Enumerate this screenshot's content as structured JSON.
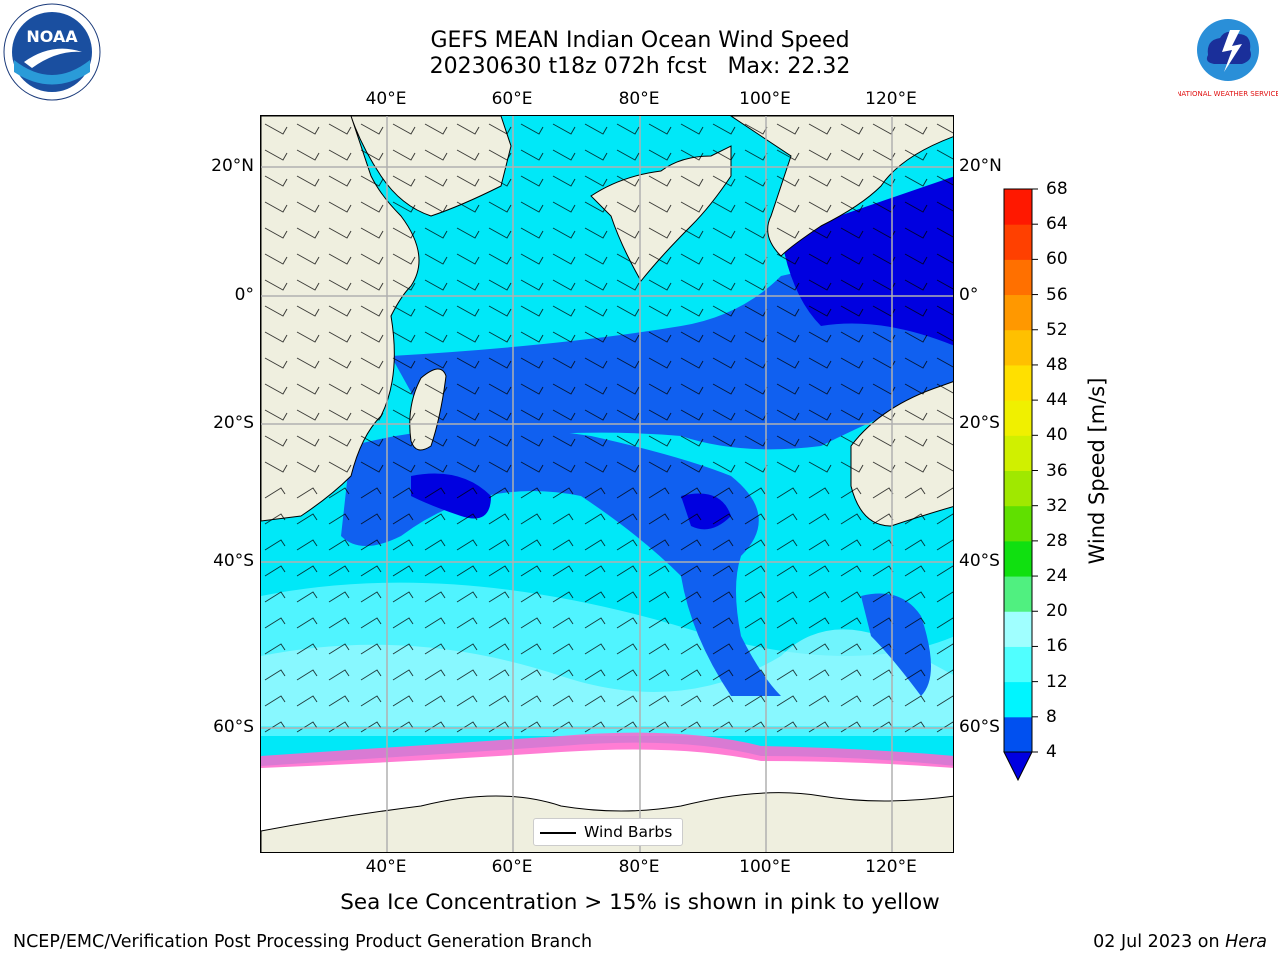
{
  "title": {
    "line1": "GEFS MEAN Indian Ocean Wind Speed",
    "line2": "20230630 t18z 072h fcst   Max: 22.32"
  },
  "map": {
    "lon_ticks": [
      "40°E",
      "60°E",
      "80°E",
      "100°E",
      "120°E"
    ],
    "lat_ticks_left": [
      "20°N",
      "0°",
      "20°S",
      "40°S",
      "60°S"
    ],
    "lat_ticks_right": [
      "20°N",
      "0°",
      "20°S",
      "40°S",
      "60°S"
    ],
    "legend_label": "Wind Barbs",
    "colors": {
      "land": "#efefdf",
      "sea_ice": "#ffffff",
      "ice_edge": "#ff66cc",
      "grid": "#b0b0b0"
    }
  },
  "colorbar": {
    "label": "Wind Speed [m/s]",
    "ticks": [
      "4",
      "8",
      "12",
      "16",
      "20",
      "24",
      "28",
      "32",
      "36",
      "40",
      "44",
      "48",
      "52",
      "56",
      "60",
      "64",
      "68"
    ],
    "colors": [
      "#0050f0",
      "#00f5ff",
      "#50ffff",
      "#a0ffff",
      "#50f080",
      "#10e010",
      "#60e000",
      "#a0e800",
      "#d0f000",
      "#f0f000",
      "#ffe000",
      "#ffc000",
      "#ff9800",
      "#ff7000",
      "#ff4000",
      "#ff1800"
    ],
    "under_color": "#0000e0"
  },
  "subtitle": "Sea Ice Concentration > 15% is shown in pink to yellow",
  "footer": {
    "left": "NCEP/EMC/Verification Post Processing Product Generation Branch",
    "date": "02 Jul 2023 on ",
    "machine": "Hera"
  },
  "logos": {
    "left_text": "NOAA",
    "right_text": "NATIONAL WEATHER SERVICE"
  }
}
